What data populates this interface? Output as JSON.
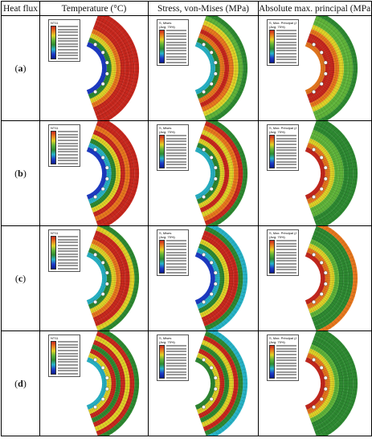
{
  "headers": [
    "Heat flux",
    "Temperature (°C)",
    "Stress, von-Mises (MPa)",
    "Absolute max. principal (MPa)"
  ],
  "rows": [
    {
      "label": "a",
      "legends": [
        "NT11",
        "S, Mises\n(Avg: 75%)",
        "S, Max. Principal (Abs)\n(Avg: 75%)"
      ]
    },
    {
      "label": "b",
      "legends": [
        "NT11",
        "S, Mises\n(Avg: 75%)",
        "S, Max. Principal (Abs)\n(Avg: 75%)"
      ]
    },
    {
      "label": "c",
      "legends": [
        "NT11",
        "S, Mises\n(Avg: 75%)",
        "S, Max. Principal (Abs)\n(Avg: 75%)"
      ]
    },
    {
      "label": "d",
      "legends": [
        "NT11",
        "S, Mises\n(Avg: 75%)",
        "S, Max. Principal (Abs)\n(Avg: 75%)"
      ]
    }
  ],
  "colors": {
    "red": "#c8281e",
    "orange": "#e8781e",
    "yellow": "#e0d228",
    "green": "#2e8a32",
    "lightgreen": "#5fb43a",
    "cyan": "#28b4c8",
    "blue": "#1e3cc8",
    "darkblue": "#0a1a8c"
  }
}
